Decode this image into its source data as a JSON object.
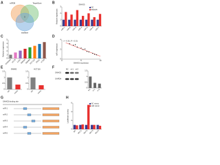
{
  "panel_letters": [
    "A",
    "B",
    "C",
    "D",
    "E",
    "F",
    "G",
    "H"
  ],
  "venn": {
    "sets": [
      {
        "name": "miRDB",
        "color": "#f4a460"
      },
      {
        "name": "TargetScan",
        "color": "#7cc47c"
      },
      {
        "name": "starBase",
        "color": "#6fa8dc"
      }
    ],
    "overlap": "5"
  },
  "blot": {
    "bands": [
      "SNHG5",
      "GAPDH"
    ],
    "lanes": [
      "NC",
      "si-1",
      "si-2"
    ]
  },
  "schematic": {
    "title": "SNHG5 binding site",
    "rows": [
      "miR-1",
      "miR-2",
      "miR-3",
      "miR-4",
      "miR-5"
    ]
  },
  "chart_data": [
    {
      "type": "bar",
      "title": "SNHG5",
      "ylabel": "Relative expression",
      "categories": [
        "miR-1",
        "miR-2",
        "miR-3",
        "miR-4",
        "miR-5",
        "miR-6",
        "miR-7"
      ],
      "series": [
        {
          "name": "NC",
          "color": "#3b3b8f",
          "values": [
            1,
            1,
            1,
            1,
            1,
            1,
            1
          ]
        },
        {
          "name": "SNHG5",
          "color": "#e8312f",
          "values": [
            2.2,
            1.8,
            2.5,
            1.6,
            2.0,
            1.4,
            1.9
          ]
        }
      ],
      "ylim": [
        0,
        3
      ],
      "yticks": [
        0,
        1,
        2,
        3
      ]
    },
    {
      "type": "bar",
      "ylabel": "Relative expression",
      "categories": [
        "NCM460",
        "HCT8",
        "LoVo",
        "SW620",
        "SW480",
        "HCT116",
        "DLD1",
        "HT29"
      ],
      "values": [
        1,
        1.6,
        2.1,
        2.6,
        3,
        3.4,
        3.9,
        4.4
      ],
      "colors": [
        "#7f7f7f",
        "#e377c2",
        "#9467bd",
        "#d62728",
        "#2ca02c",
        "#ff7f0e",
        "#1f77b4",
        "#8c564b"
      ],
      "ylim": [
        0,
        5
      ],
      "yticks": [
        0,
        1,
        2,
        3,
        4,
        5
      ]
    },
    {
      "type": "scatter",
      "xlabel": "SNHG5 expression",
      "ylabel": "miR expression",
      "annotation": "r = -0.61, P < 0.01",
      "x": [
        2,
        3,
        3.5,
        4,
        5,
        5.5,
        6,
        6.5,
        7,
        8,
        8.5,
        9
      ],
      "values": [
        3.2,
        2.9,
        3.0,
        2.5,
        2.3,
        2.0,
        2.1,
        1.6,
        1.5,
        1.2,
        1.0,
        0.9
      ],
      "color": "#333333",
      "fit_line": {
        "x": [
          1,
          10
        ],
        "y": [
          3.4,
          0.6
        ],
        "color": "#e8312f"
      },
      "xlim": [
        0,
        10
      ],
      "xticks": [
        0,
        5,
        10
      ],
      "ylim": [
        0,
        4
      ],
      "yticks": [
        0,
        2,
        4
      ]
    },
    {
      "type": "bar",
      "title": "SW480",
      "categories": [
        "NC",
        "mimic"
      ],
      "values": [
        1,
        0.4
      ],
      "colors": [
        "#808080",
        "#e8312f"
      ],
      "ylim": [
        0,
        1.5
      ],
      "yticks": [
        0,
        0.5,
        1,
        1.5
      ]
    },
    {
      "type": "bar",
      "title": "HCT116",
      "categories": [
        "NC",
        "mimic"
      ],
      "values": [
        1,
        0.35
      ],
      "colors": [
        "#808080",
        "#e8312f"
      ],
      "ylim": [
        0,
        1.5
      ],
      "yticks": [
        0,
        0.5,
        1,
        1.5
      ]
    },
    {
      "type": "bar",
      "categories": [
        "NC",
        "si-1",
        "si-2"
      ],
      "values": [
        1,
        0.45,
        0.38
      ],
      "color": "#666666",
      "ylim": [
        0,
        1.5
      ],
      "yticks": [
        0,
        0.5,
        1,
        1.5
      ]
    },
    {
      "type": "bar",
      "ylabel": "Luciferase activity",
      "categories": [
        "WT",
        "MUT1",
        "MUT2",
        "MUT3",
        "MUT4"
      ],
      "series": [
        {
          "name": "NC mimic",
          "color": "#3b3b8f",
          "values": [
            1,
            1,
            1,
            1,
            1
          ]
        },
        {
          "name": "miR mimic",
          "color": "#e8312f",
          "values": [
            0.9,
            1.1,
            5.6,
            1,
            0.8
          ]
        }
      ],
      "ylim": [
        0,
        6
      ],
      "yticks": [
        0,
        2,
        4,
        6
      ]
    }
  ]
}
